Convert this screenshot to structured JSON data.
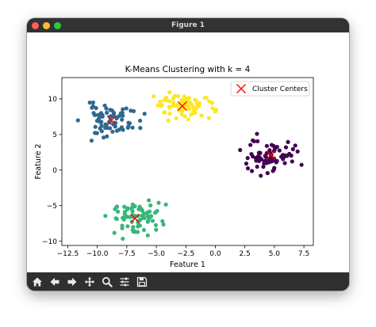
{
  "window": {
    "title": "Figure 1"
  },
  "toolbar": {
    "items": [
      {
        "name": "home-icon"
      },
      {
        "name": "back-arrow-icon"
      },
      {
        "name": "forward-arrow-icon"
      },
      {
        "name": "pan-move-icon"
      },
      {
        "name": "zoom-magnifier-icon"
      },
      {
        "name": "configure-subplots-icon"
      },
      {
        "name": "save-floppy-icon"
      }
    ]
  },
  "chart_data": {
    "type": "scatter",
    "title": "K-Means Clustering with k = 4",
    "xlabel": "Feature 1",
    "ylabel": "Feature 2",
    "xlim": [
      -13,
      8.3
    ],
    "ylim": [
      -10.6,
      13
    ],
    "xticks": [
      -12.5,
      -10.0,
      -7.5,
      -5.0,
      -2.5,
      0.0,
      2.5,
      5.0,
      7.5
    ],
    "xtick_labels": [
      "−12.5",
      "−10.0",
      "−7.5",
      "−5.0",
      "−2.5",
      "0.0",
      "2.5",
      "5.0",
      "7.5"
    ],
    "yticks": [
      -10,
      -5,
      0,
      5,
      10
    ],
    "ytick_labels": [
      "−10",
      "−5",
      "0",
      "5",
      "10"
    ],
    "grid": false,
    "legend": {
      "position": "top-right",
      "entries": [
        "Cluster Centers"
      ]
    },
    "clusters": [
      {
        "color": "#31688e",
        "center": [
          -8.8,
          7.0
        ],
        "spread": [
          1.2,
          1.1
        ],
        "count": 75,
        "seed": 11
      },
      {
        "color": "#fde725",
        "center": [
          -2.8,
          9.0
        ],
        "spread": [
          1.3,
          0.95
        ],
        "count": 75,
        "seed": 23
      },
      {
        "color": "#440154",
        "center": [
          4.7,
          2.1
        ],
        "spread": [
          1.0,
          1.15
        ],
        "count": 75,
        "seed": 37
      },
      {
        "color": "#35b779",
        "center": [
          -6.8,
          -6.8
        ],
        "spread": [
          1.15,
          1.1
        ],
        "count": 75,
        "seed": 53
      }
    ],
    "centers": {
      "marker": "x",
      "color": "#ff0000",
      "points": [
        [
          -8.8,
          7.0
        ],
        [
          -2.8,
          9.0
        ],
        [
          4.7,
          2.1
        ],
        [
          -6.8,
          -6.8
        ]
      ]
    }
  }
}
